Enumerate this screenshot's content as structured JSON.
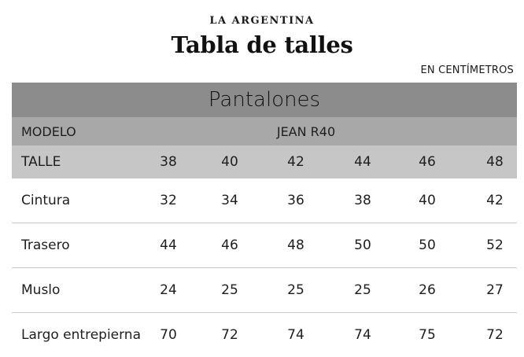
{
  "brand": "LA ARGENTINA",
  "title": "Tabla de talles",
  "unit_note": "EN CENTÍMETROS",
  "table": {
    "section": "Pantalones",
    "model_label": "MODELO",
    "model_value": "JEAN R40",
    "size_label": "TALLE",
    "sizes": [
      "38",
      "40",
      "42",
      "44",
      "46",
      "48"
    ],
    "rows": [
      {
        "label": "Cintura",
        "values": [
          "32",
          "34",
          "36",
          "38",
          "40",
          "42"
        ]
      },
      {
        "label": "Trasero",
        "values": [
          "44",
          "46",
          "48",
          "50",
          "50",
          "52"
        ]
      },
      {
        "label": "Muslo",
        "values": [
          "24",
          "25",
          "25",
          "25",
          "26",
          "27"
        ]
      },
      {
        "label": "Largo entrepierna",
        "values": [
          "70",
          "72",
          "74",
          "74",
          "75",
          "72"
        ]
      }
    ]
  },
  "colors": {
    "section_band": "#8c8c8c",
    "model_row": "#a8a8a8",
    "size_row": "#c6c6c6"
  }
}
